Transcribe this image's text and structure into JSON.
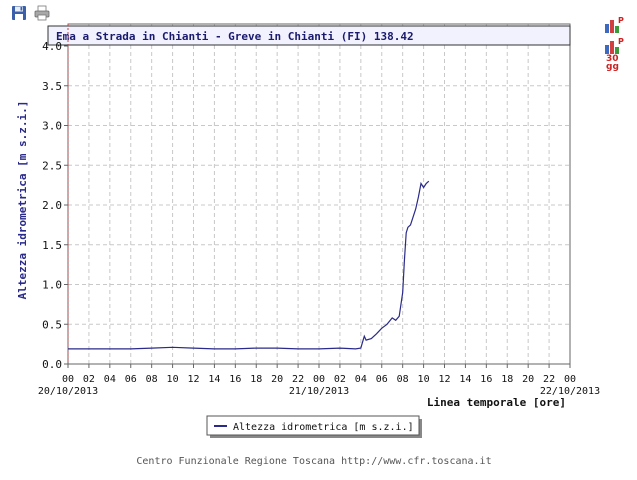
{
  "toolbar": {
    "save_icon": "floppy-disk-icon",
    "print_icon": "printer-icon"
  },
  "side": {
    "icon1": "bar-chart-icon",
    "icon1_badge": "P",
    "icon2": "bar-chart-icon",
    "icon2_badge": "P",
    "icon2_caption_1": "30",
    "icon2_caption_2": "gg"
  },
  "footer": {
    "credit": "Centro Funzionale Regione Toscana http://www.cfr.toscana.it"
  },
  "colors": {
    "line": "#2a2a8a",
    "header_bg": "#f2f2ff",
    "grid": "#c8c8c8",
    "axis_accent": "#c84040"
  },
  "chart_data": {
    "type": "line",
    "title": "Ema a Strada in Chianti - Greve in Chianti (FI) 138.42",
    "xlabel": "Linea temporale [ore]",
    "ylabel": "Altezza idrometrica [m s.z.i.]",
    "ylim": [
      0,
      4.0
    ],
    "yticks": [
      "0.0",
      "0.5",
      "1.0",
      "1.5",
      "2.0",
      "2.5",
      "3.0",
      "3.5",
      "4.0"
    ],
    "xlim": [
      "2013-10-20 00:00",
      "2013-10-22 00:00"
    ],
    "xtick_labels": [
      "00",
      "02",
      "04",
      "06",
      "08",
      "10",
      "12",
      "14",
      "16",
      "18",
      "20",
      "22",
      "00",
      "02",
      "04",
      "06",
      "08",
      "10",
      "12",
      "14",
      "16",
      "18",
      "20",
      "22",
      "00"
    ],
    "date_labels": [
      {
        "tick_index": 0,
        "text": "20/10/2013"
      },
      {
        "tick_index": 12,
        "text": "21/10/2013"
      },
      {
        "tick_index": 24,
        "text": "22/10/2013"
      }
    ],
    "grid": true,
    "legend": "bottom-center",
    "series": [
      {
        "name": "Altezza idrometrica [m s.z.i.]",
        "x": [
          "2013-10-20 00:00",
          "2013-10-20 02:00",
          "2013-10-20 04:00",
          "2013-10-20 06:00",
          "2013-10-20 08:00",
          "2013-10-20 10:00",
          "2013-10-20 12:00",
          "2013-10-20 14:00",
          "2013-10-20 16:00",
          "2013-10-20 18:00",
          "2013-10-20 20:00",
          "2013-10-20 22:00",
          "2013-10-21 00:00",
          "2013-10-21 02:00",
          "2013-10-21 03:30",
          "2013-10-21 04:00",
          "2013-10-21 04:20",
          "2013-10-21 04:30",
          "2013-10-21 05:00",
          "2013-10-21 05:30",
          "2013-10-21 06:00",
          "2013-10-21 06:30",
          "2013-10-21 07:00",
          "2013-10-21 07:20",
          "2013-10-21 07:40",
          "2013-10-21 08:00",
          "2013-10-21 08:10",
          "2013-10-21 08:20",
          "2013-10-21 08:30",
          "2013-10-21 08:45",
          "2013-10-21 09:00",
          "2013-10-21 09:15",
          "2013-10-21 09:30",
          "2013-10-21 09:45",
          "2013-10-21 10:00",
          "2013-10-21 10:15",
          "2013-10-21 10:30"
        ],
        "y": [
          0.19,
          0.19,
          0.19,
          0.19,
          0.2,
          0.21,
          0.2,
          0.19,
          0.19,
          0.2,
          0.2,
          0.19,
          0.19,
          0.2,
          0.19,
          0.2,
          0.35,
          0.3,
          0.32,
          0.38,
          0.45,
          0.5,
          0.58,
          0.55,
          0.6,
          0.9,
          1.3,
          1.65,
          1.72,
          1.75,
          1.85,
          1.95,
          2.1,
          2.27,
          2.22,
          2.27,
          2.3
        ]
      }
    ]
  }
}
